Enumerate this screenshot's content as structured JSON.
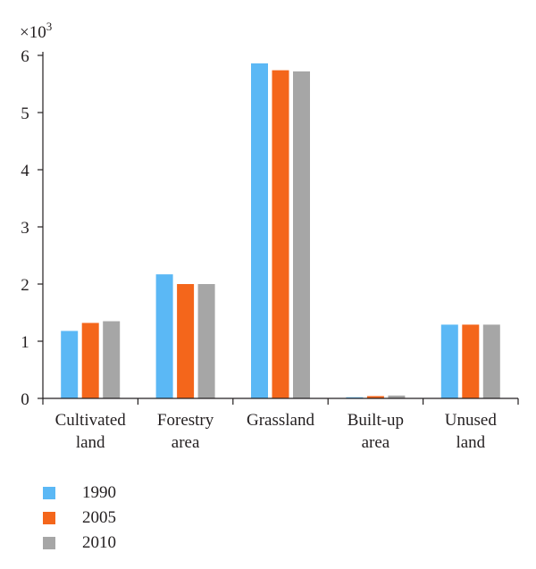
{
  "chart_data": {
    "type": "bar",
    "multiplier_label": "×10",
    "multiplier_exponent": "3",
    "categories": [
      [
        "Cultivated",
        "land"
      ],
      [
        "Forestry",
        "area"
      ],
      [
        "Grassland"
      ],
      [
        "Built-up",
        "area"
      ],
      [
        "Unused",
        "land"
      ]
    ],
    "series": [
      {
        "name": "1990",
        "color": "#5bb8f5",
        "values": [
          1.18,
          2.17,
          5.86,
          0.02,
          1.29
        ]
      },
      {
        "name": "2005",
        "color": "#f4661b",
        "values": [
          1.32,
          2.0,
          5.74,
          0.04,
          1.29
        ]
      },
      {
        "name": "2010",
        "color": "#a6a6a6",
        "values": [
          1.35,
          2.0,
          5.72,
          0.05,
          1.29
        ]
      }
    ],
    "ylim": [
      0,
      6
    ],
    "yticks": [
      "0",
      "1",
      "2",
      "3",
      "4",
      "5",
      "6"
    ],
    "grid": false,
    "legend_position": "bottom-left"
  }
}
